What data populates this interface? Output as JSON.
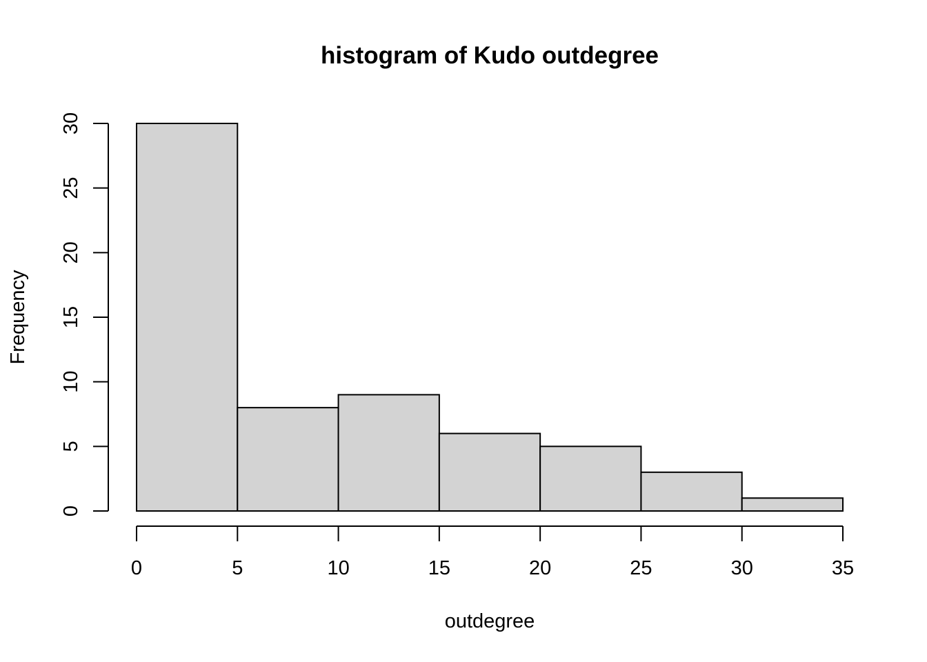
{
  "chart_data": {
    "type": "bar",
    "title": "histogram of Kudo outdegree",
    "xlabel": "outdegree",
    "ylabel": "Frequency",
    "bins": [
      {
        "start": 0,
        "end": 5,
        "count": 30
      },
      {
        "start": 5,
        "end": 10,
        "count": 8
      },
      {
        "start": 10,
        "end": 15,
        "count": 9
      },
      {
        "start": 15,
        "end": 20,
        "count": 6
      },
      {
        "start": 20,
        "end": 25,
        "count": 5
      },
      {
        "start": 25,
        "end": 30,
        "count": 3
      },
      {
        "start": 30,
        "end": 35,
        "count": 1
      }
    ],
    "xlim": [
      0,
      35
    ],
    "ylim": [
      0,
      30
    ],
    "xticks": [
      0,
      5,
      10,
      15,
      20,
      25,
      30,
      35
    ],
    "yticks": [
      0,
      5,
      10,
      15,
      20,
      25,
      30
    ],
    "bar_color": "#d3d3d3",
    "edge_color": "#000000",
    "grid": false,
    "legend": "none"
  }
}
